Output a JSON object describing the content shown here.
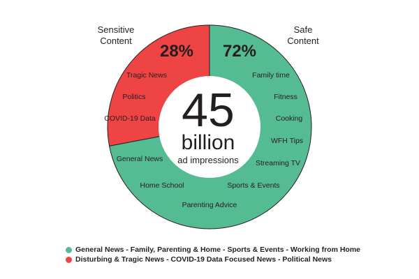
{
  "chart_data": {
    "type": "pie",
    "center": {
      "value": "45",
      "unit": "billion",
      "label": "ad impressions"
    },
    "series": [
      {
        "name": "Sensitive Content",
        "value": 28,
        "value_label": "28%",
        "color": "#ef4444",
        "title_lines": [
          "Sensitive",
          "Content"
        ],
        "topics": [
          "Tragic News",
          "Politics",
          "COVID-19 Data"
        ]
      },
      {
        "name": "Safe Content",
        "value": 72,
        "value_label": "72%",
        "color": "#55bb93",
        "title_lines": [
          "Safe",
          "Content"
        ],
        "topics": [
          "Family time",
          "Fitness",
          "Cooking",
          "WFH Tips",
          "Streaming TV",
          "Sports & Events",
          "Parenting Advice",
          "Home School",
          "General News"
        ]
      }
    ],
    "legend": [
      {
        "color": "#55bb93",
        "text": "General News - Family, Parenting & Home - Sports & Events - Working from Home"
      },
      {
        "color": "#ef4444",
        "text": "Disturbing & Tragic News - COVID-19 Data Focused News - Political News"
      }
    ]
  }
}
